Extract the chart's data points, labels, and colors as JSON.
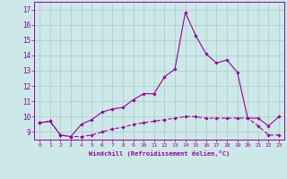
{
  "x": [
    0,
    1,
    2,
    3,
    4,
    5,
    6,
    7,
    8,
    9,
    10,
    11,
    12,
    13,
    14,
    15,
    16,
    17,
    18,
    19,
    20,
    21,
    22,
    23
  ],
  "line1": [
    9.6,
    9.7,
    8.8,
    8.7,
    9.5,
    9.8,
    10.3,
    10.5,
    10.6,
    11.1,
    11.5,
    11.5,
    12.6,
    13.1,
    16.8,
    15.3,
    14.1,
    13.5,
    13.7,
    12.9,
    9.9,
    9.9,
    9.4,
    10.0
  ],
  "line2": [
    9.6,
    9.7,
    8.8,
    8.7,
    8.7,
    8.8,
    9.0,
    9.2,
    9.3,
    9.5,
    9.6,
    9.7,
    9.8,
    9.9,
    10.0,
    10.0,
    9.9,
    9.9,
    9.9,
    9.9,
    9.9,
    9.4,
    8.8,
    8.8
  ],
  "line_color": "#990099",
  "bg_color": "#cce8e8",
  "grid_color": "#b0c8c8",
  "xlabel": "Windchill (Refroidissement éolien,°C)",
  "ylim": [
    8.5,
    17.5
  ],
  "yticks": [
    9,
    10,
    11,
    12,
    13,
    14,
    15,
    16,
    17
  ],
  "xlim": [
    -0.5,
    23.5
  ],
  "xticks": [
    0,
    1,
    2,
    3,
    4,
    5,
    6,
    7,
    8,
    9,
    10,
    11,
    12,
    13,
    14,
    15,
    16,
    17,
    18,
    19,
    20,
    21,
    22,
    23
  ]
}
